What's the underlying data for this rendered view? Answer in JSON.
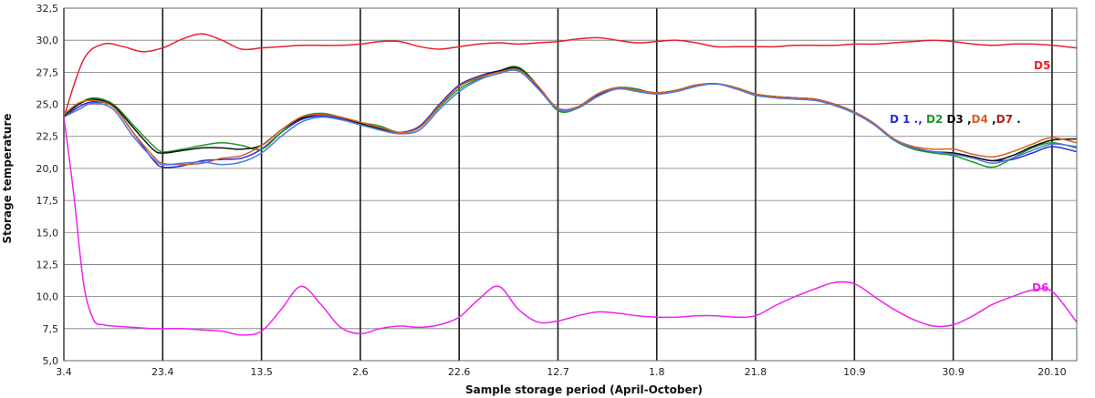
{
  "chart_data": {
    "type": "line",
    "title": "",
    "xlabel": "Sample storage period (April-October)",
    "ylabel": "Storage temperature",
    "ylim": [
      5.0,
      32.5
    ],
    "yticks": [
      5.0,
      7.5,
      10.0,
      12.5,
      15.0,
      17.5,
      20.0,
      22.5,
      25.0,
      27.5,
      30.0,
      32.5
    ],
    "ytick_labels": [
      "5,0",
      "7,5",
      "10,0",
      "12,5",
      "15,0",
      "17,5",
      "20,0",
      "22,5",
      "25,0",
      "27,5",
      "30,0",
      "32,5"
    ],
    "xlim": [
      0,
      20.5
    ],
    "categories": [
      "3.4",
      "23.4",
      "13.5",
      "2.6",
      "22.6",
      "12.7",
      "1.8",
      "21.8",
      "10.9",
      "30.9",
      "20.10"
    ],
    "category_positions": [
      0,
      2,
      4,
      6,
      8,
      10,
      12,
      14,
      16,
      18,
      20
    ],
    "grid": true,
    "series": [
      {
        "name": "D5",
        "color": "#e8202a",
        "x": [
          0,
          0.4,
          0.8,
          1.2,
          1.6,
          2,
          2.4,
          2.8,
          3.2,
          3.6,
          4,
          4.4,
          4.8,
          5.2,
          5.6,
          6,
          6.4,
          6.8,
          7.2,
          7.6,
          8,
          8.4,
          8.8,
          9.2,
          9.6,
          10,
          10.4,
          10.8,
          11.2,
          11.6,
          12,
          12.4,
          12.8,
          13.2,
          13.6,
          14,
          14.4,
          14.8,
          15.2,
          15.6,
          16,
          16.4,
          16.8,
          17.2,
          17.6,
          18,
          18.4,
          18.8,
          19.2,
          19.6,
          20,
          20.5
        ],
        "values": [
          24.0,
          28.5,
          29.7,
          29.5,
          29.1,
          29.4,
          30.1,
          30.5,
          30.0,
          29.3,
          29.4,
          29.5,
          29.6,
          29.6,
          29.6,
          29.7,
          29.9,
          29.9,
          29.5,
          29.3,
          29.5,
          29.7,
          29.8,
          29.7,
          29.8,
          29.9,
          30.1,
          30.2,
          30.0,
          29.8,
          29.9,
          30.0,
          29.8,
          29.5,
          29.5,
          29.5,
          29.5,
          29.6,
          29.6,
          29.6,
          29.7,
          29.7,
          29.8,
          29.9,
          30.0,
          29.9,
          29.7,
          29.6,
          29.7,
          29.7,
          29.6,
          29.4
        ]
      },
      {
        "name": "D6",
        "color": "#ee22ee",
        "x": [
          0,
          0.2,
          0.4,
          0.6,
          0.8,
          1,
          1.4,
          1.8,
          2,
          2.4,
          2.8,
          3.2,
          3.6,
          4,
          4.4,
          4.8,
          5.2,
          5.6,
          6,
          6.4,
          6.8,
          7.2,
          7.6,
          8,
          8.4,
          8.8,
          9.2,
          9.6,
          10,
          10.4,
          10.8,
          11.2,
          11.6,
          12,
          12.4,
          12.8,
          13.2,
          13.6,
          14,
          14.4,
          14.8,
          15.2,
          15.6,
          16,
          16.4,
          16.8,
          17.2,
          17.6,
          18,
          18.4,
          18.8,
          19.2,
          19.6,
          20,
          20.5
        ],
        "values": [
          24.0,
          18.0,
          11.0,
          8.2,
          7.8,
          7.7,
          7.6,
          7.5,
          7.5,
          7.5,
          7.4,
          7.3,
          7.0,
          7.3,
          9.0,
          10.8,
          9.4,
          7.6,
          7.1,
          7.5,
          7.7,
          7.6,
          7.8,
          8.4,
          9.8,
          10.8,
          9.0,
          8.0,
          8.1,
          8.5,
          8.8,
          8.7,
          8.5,
          8.4,
          8.4,
          8.5,
          8.5,
          8.4,
          8.5,
          9.3,
          10.0,
          10.6,
          11.1,
          11.0,
          10.0,
          9.0,
          8.2,
          7.7,
          7.8,
          8.5,
          9.4,
          10.0,
          10.5,
          10.4,
          8.0
        ]
      },
      {
        "name": "D1",
        "color": "#2a2add",
        "x": [
          0,
          0.3,
          0.6,
          1,
          1.4,
          1.8,
          2,
          2.4,
          2.8,
          3.2,
          3.6,
          4,
          4.4,
          4.8,
          5.2,
          5.6,
          6,
          6.4,
          6.8,
          7.2,
          7.6,
          8,
          8.4,
          8.8,
          9.2,
          9.6,
          10,
          10.4,
          10.8,
          11.2,
          11.6,
          12,
          12.4,
          12.8,
          13.2,
          13.6,
          14,
          14.4,
          14.8,
          15.2,
          15.6,
          16,
          16.4,
          16.8,
          17.2,
          17.6,
          18,
          18.4,
          18.8,
          19.2,
          19.6,
          20,
          20.5
        ],
        "values": [
          24.0,
          24.8,
          25.2,
          24.8,
          22.8,
          20.7,
          20.1,
          20.2,
          20.6,
          20.7,
          20.8,
          21.5,
          22.8,
          23.8,
          24.1,
          23.9,
          23.5,
          23.0,
          22.8,
          23.3,
          25.0,
          26.5,
          27.2,
          27.6,
          27.7,
          26.3,
          24.7,
          24.8,
          25.7,
          26.3,
          26.1,
          25.9,
          26.1,
          26.5,
          26.6,
          26.3,
          25.7,
          25.6,
          25.5,
          25.4,
          25.0,
          24.4,
          23.5,
          22.3,
          21.6,
          21.3,
          21.2,
          20.9,
          20.6,
          20.7,
          21.2,
          21.7,
          21.3
        ]
      },
      {
        "name": "D2",
        "color": "#1a9a2a",
        "x": [
          0,
          0.3,
          0.6,
          1,
          1.4,
          1.8,
          2,
          2.4,
          2.8,
          3.2,
          3.6,
          4,
          4.4,
          4.8,
          5.2,
          5.6,
          6,
          6.4,
          6.8,
          7.2,
          7.6,
          8,
          8.4,
          8.8,
          9.2,
          9.6,
          10,
          10.4,
          10.8,
          11.2,
          11.6,
          12,
          12.4,
          12.8,
          13.2,
          13.6,
          14,
          14.4,
          14.8,
          15.2,
          15.6,
          16,
          16.4,
          16.8,
          17.2,
          17.6,
          18,
          18.4,
          18.8,
          19.2,
          19.6,
          20,
          20.5
        ],
        "values": [
          24.0,
          25.0,
          25.5,
          25.0,
          23.4,
          21.8,
          21.3,
          21.5,
          21.8,
          22.0,
          21.8,
          21.5,
          22.8,
          24.0,
          24.3,
          24.0,
          23.6,
          23.3,
          22.8,
          23.2,
          24.8,
          26.2,
          27.0,
          27.6,
          27.9,
          26.4,
          24.5,
          24.7,
          25.8,
          26.3,
          26.2,
          25.8,
          26.1,
          26.5,
          26.6,
          26.3,
          25.8,
          25.6,
          25.5,
          25.4,
          25.0,
          24.4,
          23.5,
          22.2,
          21.5,
          21.2,
          21.0,
          20.5,
          20.1,
          20.8,
          21.6,
          22.0,
          21.6
        ]
      },
      {
        "name": "D3",
        "color": "#111111",
        "x": [
          0,
          0.3,
          0.6,
          1,
          1.4,
          1.8,
          2,
          2.4,
          2.8,
          3.2,
          3.6,
          4,
          4.4,
          4.8,
          5.2,
          5.6,
          6,
          6.4,
          6.8,
          7.2,
          7.6,
          8,
          8.4,
          8.8,
          9.2,
          9.6,
          10,
          10.4,
          10.8,
          11.2,
          11.6,
          12,
          12.4,
          12.8,
          13.2,
          13.6,
          14,
          14.4,
          14.8,
          15.2,
          15.6,
          16,
          16.4,
          16.8,
          17.2,
          17.6,
          18,
          18.4,
          18.8,
          19.2,
          19.6,
          20,
          20.5
        ],
        "values": [
          24.1,
          25.0,
          25.4,
          24.9,
          23.2,
          21.5,
          21.2,
          21.4,
          21.6,
          21.6,
          21.5,
          21.8,
          23.0,
          23.9,
          24.2,
          24.0,
          23.5,
          23.1,
          22.8,
          23.2,
          24.9,
          26.4,
          27.1,
          27.6,
          27.8,
          26.4,
          24.6,
          24.8,
          25.8,
          26.3,
          26.1,
          25.9,
          26.1,
          26.5,
          26.6,
          26.3,
          25.8,
          25.6,
          25.5,
          25.4,
          25.0,
          24.4,
          23.5,
          22.2,
          21.6,
          21.3,
          21.2,
          20.9,
          20.6,
          21.0,
          21.7,
          22.2,
          22.3
        ]
      },
      {
        "name": "D4",
        "color": "#d86020",
        "x": [
          0,
          0.3,
          0.6,
          1,
          1.4,
          1.8,
          2,
          2.4,
          2.8,
          3.2,
          3.6,
          4,
          4.4,
          4.8,
          5.2,
          5.6,
          6,
          6.4,
          6.8,
          7.2,
          7.6,
          8,
          8.4,
          8.8,
          9.2,
          9.6,
          10,
          10.4,
          10.8,
          11.2,
          11.6,
          12,
          12.4,
          12.8,
          13.2,
          13.6,
          14,
          14.4,
          14.8,
          15.2,
          15.6,
          16,
          16.4,
          16.8,
          17.2,
          17.6,
          18,
          18.4,
          18.8,
          19.2,
          19.6,
          20,
          20.5
        ],
        "values": [
          24.2,
          25.1,
          25.3,
          24.8,
          22.8,
          21.0,
          20.4,
          20.3,
          20.4,
          20.8,
          21.0,
          21.8,
          23.0,
          24.0,
          24.2,
          24.0,
          23.6,
          23.2,
          22.8,
          23.2,
          24.9,
          26.4,
          27.1,
          27.5,
          27.7,
          26.4,
          24.7,
          24.8,
          25.8,
          26.3,
          26.1,
          25.9,
          26.1,
          26.5,
          26.6,
          26.3,
          25.8,
          25.6,
          25.5,
          25.4,
          25.0,
          24.4,
          23.5,
          22.3,
          21.7,
          21.5,
          21.5,
          21.1,
          20.9,
          21.3,
          21.9,
          22.4,
          22.0
        ]
      },
      {
        "name": "D7",
        "color": "#4c7ae0",
        "x": [
          0,
          0.3,
          0.6,
          1,
          1.4,
          1.8,
          2,
          2.4,
          2.8,
          3.2,
          3.6,
          4,
          4.4,
          4.8,
          5.2,
          5.6,
          6,
          6.4,
          6.8,
          7.2,
          7.6,
          8,
          8.4,
          8.8,
          9.2,
          9.6,
          10,
          10.4,
          10.8,
          11.2,
          11.6,
          12,
          12.4,
          12.8,
          13.2,
          13.6,
          14,
          14.4,
          14.8,
          15.2,
          15.6,
          16,
          16.4,
          16.8,
          17.2,
          17.6,
          18,
          18.4,
          18.8,
          19.2,
          19.6,
          20,
          20.5
        ],
        "values": [
          24.0,
          24.6,
          25.1,
          24.6,
          22.5,
          20.8,
          20.3,
          20.4,
          20.5,
          20.3,
          20.5,
          21.2,
          22.5,
          23.6,
          24.0,
          23.8,
          23.4,
          23.0,
          22.7,
          23.0,
          24.6,
          26.0,
          26.9,
          27.4,
          27.6,
          26.2,
          24.6,
          24.7,
          25.6,
          26.2,
          26.0,
          25.8,
          26.0,
          26.4,
          26.6,
          26.2,
          25.7,
          25.5,
          25.4,
          25.3,
          24.9,
          24.3,
          23.4,
          22.2,
          21.6,
          21.3,
          21.1,
          20.8,
          20.4,
          20.8,
          21.4,
          21.9,
          21.7
        ]
      }
    ],
    "annotations": [
      {
        "text": "D5",
        "color": "#e8202a"
      },
      {
        "text": "D6",
        "color": "#ee22ee"
      }
    ],
    "group_label": [
      {
        "text": "D 1",
        "color": "#2a2add"
      },
      {
        "text": " ., ",
        "color": "#2a2add"
      },
      {
        "text": "D2",
        "color": "#1a9a2a"
      },
      {
        "text": " D3",
        "color": "#111111"
      },
      {
        "text": " ,",
        "color": "#111111"
      },
      {
        "text": "D4",
        "color": "#d86020"
      },
      {
        "text": " ,",
        "color": "#111111"
      },
      {
        "text": "D7",
        "color": "#b0201a"
      },
      {
        "text": " .",
        "color": "#111111"
      }
    ]
  }
}
